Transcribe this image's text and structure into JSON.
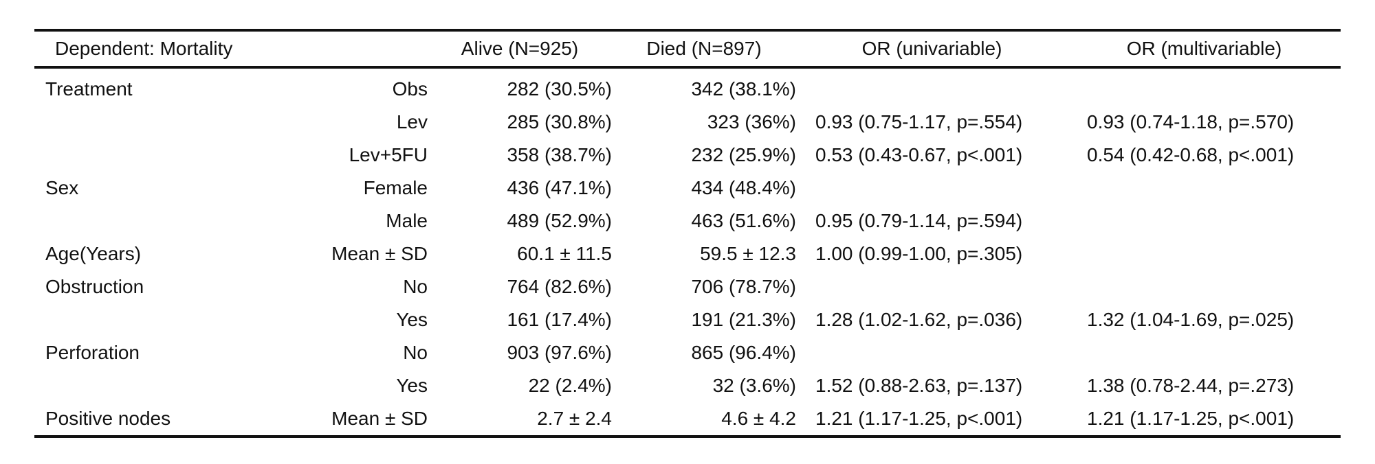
{
  "table": {
    "headers": [
      "Dependent: Mortality",
      "",
      "Alive (N=925)",
      "Died (N=897)",
      "OR (univariable)",
      "OR (multivariable)"
    ],
    "rows": [
      [
        "Treatment",
        "Obs",
        "282 (30.5%)",
        "342 (38.1%)",
        "",
        ""
      ],
      [
        "",
        "Lev",
        "285 (30.8%)",
        "323 (36%)",
        "0.93 (0.75-1.17, p=.554)",
        "0.93 (0.74-1.18, p=.570)"
      ],
      [
        "",
        "Lev+5FU",
        "358 (38.7%)",
        "232 (25.9%)",
        "0.53 (0.43-0.67, p<.001)",
        "0.54 (0.42-0.68, p<.001)"
      ],
      [
        "Sex",
        "Female",
        "436 (47.1%)",
        "434 (48.4%)",
        "",
        ""
      ],
      [
        "",
        "Male",
        "489 (52.9%)",
        "463 (51.6%)",
        "0.95 (0.79-1.14, p=.594)",
        ""
      ],
      [
        "Age(Years)",
        "Mean ± SD",
        "60.1 ± 11.5",
        "59.5 ± 12.3",
        "1.00 (0.99-1.00, p=.305)",
        ""
      ],
      [
        "Obstruction",
        "No",
        "764 (82.6%)",
        "706 (78.7%)",
        "",
        ""
      ],
      [
        "",
        "Yes",
        "161 (17.4%)",
        "191 (21.3%)",
        "1.28 (1.02-1.62, p=.036)",
        "1.32 (1.04-1.69, p=.025)"
      ],
      [
        "Perforation",
        "No",
        "903 (97.6%)",
        "865 (96.4%)",
        "",
        ""
      ],
      [
        "",
        "Yes",
        "22 (2.4%)",
        "32 (3.6%)",
        "1.52 (0.88-2.63, p=.137)",
        "1.38 (0.78-2.44, p=.273)"
      ],
      [
        "Positive nodes",
        "Mean ± SD",
        "2.7 ± 2.4",
        "4.6 ± 4.2",
        "1.21 (1.17-1.25, p<.001)",
        "1.21 (1.17-1.25, p<.001)"
      ]
    ]
  }
}
